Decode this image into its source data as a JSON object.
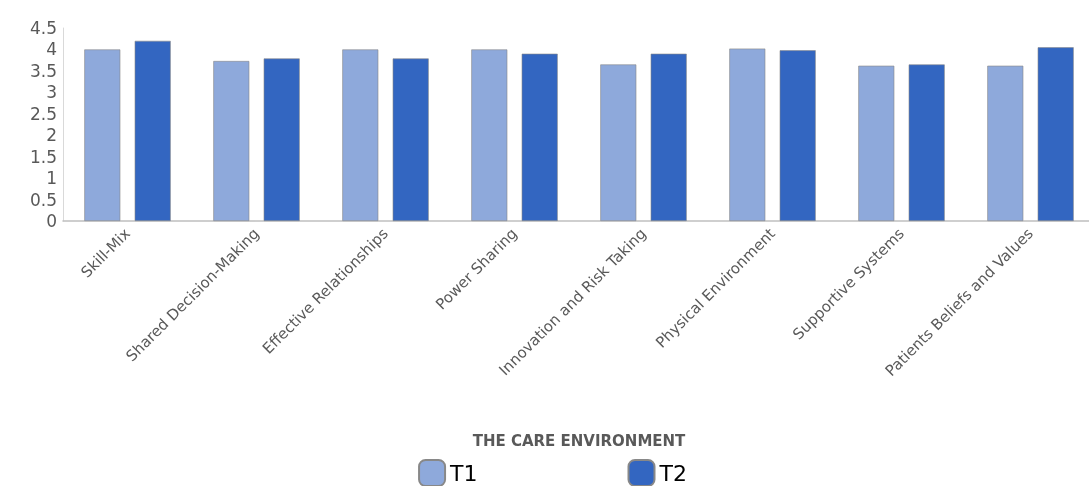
{
  "chart_data": {
    "type": "bar",
    "xlabel": "THE CARE ENVIRONMENT",
    "categories": [
      "Skill-Mix",
      "Shared Decision-Making",
      "Effective Relationships",
      "Power Sharing",
      "Innovation and Risk Taking",
      "Physical Environment",
      "Supportive Systems",
      "Patients Beliefs and Values"
    ],
    "series": [
      {
        "name": "T1",
        "color": "#8ea9db",
        "values": [
          4.0,
          3.73,
          4.0,
          4.0,
          3.65,
          4.02,
          3.62,
          3.62
        ]
      },
      {
        "name": "T2",
        "color": "#3366c1",
        "values": [
          4.2,
          3.79,
          3.79,
          3.9,
          3.9,
          3.98,
          3.65,
          4.05
        ]
      }
    ],
    "ylim": [
      0,
      4.5
    ],
    "yticks": [
      0,
      0.5,
      1,
      1.5,
      2,
      2.5,
      3,
      3.5,
      4,
      4.5
    ],
    "grid": false,
    "legend": "bottom"
  }
}
